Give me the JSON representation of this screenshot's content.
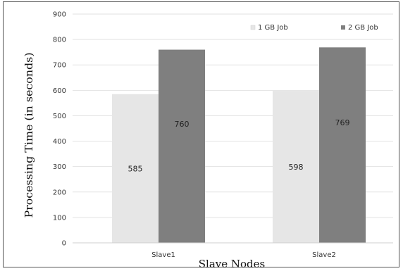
{
  "chart_data": {
    "type": "bar",
    "title": "",
    "xlabel": "Slave Nodes",
    "ylabel": "Processing Time (in seconds)",
    "categories": [
      "Slave1",
      "Slave2"
    ],
    "series": [
      {
        "name": "1 GB Job",
        "values": [
          585,
          598
        ],
        "color": "#e6e6e6"
      },
      {
        "name": "2 GB Job",
        "values": [
          760,
          769
        ],
        "color": "#7f7f7f"
      }
    ],
    "ylim": [
      0,
      900
    ],
    "yticks": [
      0,
      100,
      200,
      300,
      400,
      500,
      600,
      700,
      800,
      900
    ],
    "grid": true,
    "legend": "top-right",
    "data_labels": true
  }
}
